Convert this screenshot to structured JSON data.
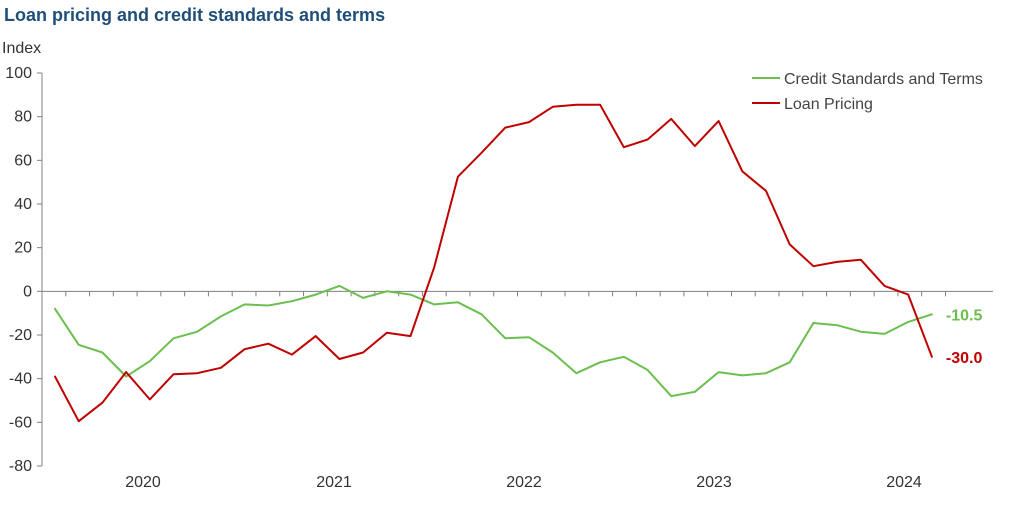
{
  "title": "Loan pricing and credit standards and terms",
  "chart_data": {
    "type": "line",
    "title": "Loan pricing and credit standards and terms",
    "ylabel": "Index",
    "xlabel": "",
    "ylim": [
      -80,
      100
    ],
    "yticks": [
      100,
      80,
      60,
      40,
      20,
      0,
      -20,
      -40,
      -60,
      -80
    ],
    "x_tick_labels": [
      "2020",
      "2021",
      "2022",
      "2023",
      "2024"
    ],
    "grid": false,
    "legend_position": "top-right",
    "series": [
      {
        "name": "Credit Standards and Terms",
        "color": "#6bbf4e",
        "end_label": "-10.5",
        "values": [
          -8,
          -24.5,
          -28,
          -39,
          -32,
          -21.5,
          -18.5,
          -11.5,
          -6,
          -6.5,
          -4.5,
          -1.5,
          2.5,
          -3,
          0,
          -1.5,
          -6,
          -5,
          -10.5,
          -21.5,
          -21,
          -28,
          -37.5,
          -32.5,
          -30,
          -36,
          -48,
          -46,
          -37,
          -38.5,
          -37.5,
          -32.5,
          -14.5,
          -15.5,
          -18.5,
          -19.5,
          -14,
          -10.5
        ]
      },
      {
        "name": "Loan Pricing",
        "color": "#c00000",
        "end_label": "-30.0",
        "values": [
          -39,
          -59.5,
          -51,
          -37,
          -49.5,
          -38,
          -37.5,
          -35,
          -26.5,
          -24,
          -29,
          -20.5,
          -31,
          -28,
          -19,
          -20.5,
          11,
          52.5,
          63.5,
          75,
          77.5,
          84.5,
          85.5,
          85.5,
          66,
          69.5,
          79,
          66.5,
          78,
          55,
          46,
          21.5,
          11.5,
          13.5,
          14.5,
          2.5,
          -1.5,
          -30
        ]
      }
    ]
  }
}
